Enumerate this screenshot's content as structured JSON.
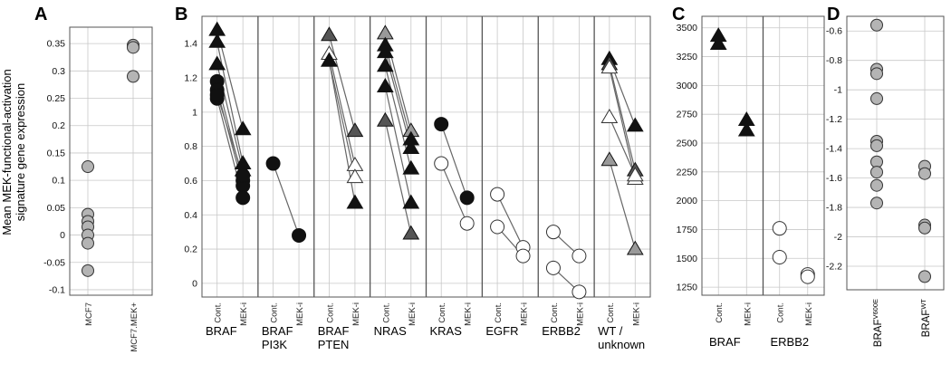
{
  "figure": {
    "ylabel_lines": [
      "Mean MEK-functional-activation",
      "signature gene expression"
    ],
    "panel_letters": [
      "A",
      "B",
      "C",
      "D"
    ]
  },
  "colors": {
    "black": "#111111",
    "dark_gray": "#555555",
    "mid_gray": "#999999",
    "light_gray": "#b4b4b4",
    "white": "#ffffff",
    "grid": "#c8c8c8",
    "line": "#666666"
  },
  "chart_data": [
    {
      "type": "scatter",
      "panel": "A",
      "categories": [
        "MCF7",
        "MCF7.MEK+"
      ],
      "ylim": [
        -0.11,
        0.38
      ],
      "yticks": [
        -0.1,
        -0.05,
        0,
        0.05,
        0.1,
        0.15,
        0.2,
        0.25,
        0.3,
        0.35
      ],
      "points": [
        {
          "cat": 0,
          "y": 0.125,
          "marker": "circle",
          "fill": "gray"
        },
        {
          "cat": 0,
          "y": 0.038,
          "marker": "circle",
          "fill": "gray"
        },
        {
          "cat": 0,
          "y": 0.025,
          "marker": "circle",
          "fill": "gray"
        },
        {
          "cat": 0,
          "y": 0.015,
          "marker": "circle",
          "fill": "gray"
        },
        {
          "cat": 0,
          "y": 0.0,
          "marker": "circle",
          "fill": "gray"
        },
        {
          "cat": 0,
          "y": -0.015,
          "marker": "circle",
          "fill": "gray"
        },
        {
          "cat": 0,
          "y": -0.065,
          "marker": "circle",
          "fill": "gray"
        },
        {
          "cat": 1,
          "y": 0.347,
          "marker": "circle",
          "fill": "gray"
        },
        {
          "cat": 1,
          "y": 0.343,
          "marker": "circle",
          "fill": "gray"
        },
        {
          "cat": 1,
          "y": 0.29,
          "marker": "circle",
          "fill": "gray"
        }
      ]
    },
    {
      "type": "line",
      "panel": "B",
      "ylim": [
        -0.08,
        1.56
      ],
      "yticks": [
        0,
        0.2,
        0.4,
        0.6,
        0.8,
        1,
        1.2,
        1.4
      ],
      "condition_labels": [
        "Cont.",
        "MEK-i"
      ],
      "groups": [
        {
          "label": [
            "BRAF"
          ],
          "pairs": [
            {
              "marker": "triangle",
              "fill": "black",
              "values": [
                1.48,
                0.9
              ]
            },
            {
              "marker": "triangle",
              "fill": "black",
              "values": [
                1.41,
                0.7
              ]
            },
            {
              "marker": "triangle",
              "fill": "black",
              "values": [
                1.28,
                0.66
              ]
            },
            {
              "marker": "circle",
              "fill": "black",
              "values": [
                1.18,
                0.6
              ]
            },
            {
              "marker": "circle",
              "fill": "black",
              "values": [
                1.13,
                0.57
              ]
            },
            {
              "marker": "circle",
              "fill": "black",
              "values": [
                1.08,
                0.5
              ]
            },
            {
              "marker": "circle",
              "fill": "black",
              "values": [
                1.1,
                0.63
              ]
            }
          ]
        },
        {
          "label": [
            "BRAF",
            "PI3K"
          ],
          "pairs": [
            {
              "marker": "circle",
              "fill": "black",
              "values": [
                0.7,
                0.28
              ]
            }
          ]
        },
        {
          "label": [
            "BRAF",
            "PTEN"
          ],
          "pairs": [
            {
              "marker": "triangle",
              "fill": "dark_gray",
              "values": [
                1.45,
                0.89
              ]
            },
            {
              "marker": "triangle",
              "fill": "white",
              "values": [
                1.34,
                0.69
              ]
            },
            {
              "marker": "triangle",
              "fill": "white",
              "values": [
                1.3,
                0.62
              ]
            },
            {
              "marker": "triangle",
              "fill": "black",
              "values": [
                1.3,
                0.47
              ]
            }
          ]
        },
        {
          "label": [
            "NRAS"
          ],
          "pairs": [
            {
              "marker": "triangle",
              "fill": "mid_gray",
              "values": [
                1.46,
                0.89
              ]
            },
            {
              "marker": "triangle",
              "fill": "black",
              "values": [
                1.39,
                0.84
              ]
            },
            {
              "marker": "triangle",
              "fill": "black",
              "values": [
                1.35,
                0.79
              ]
            },
            {
              "marker": "triangle",
              "fill": "black",
              "values": [
                1.27,
                0.67
              ]
            },
            {
              "marker": "triangle",
              "fill": "black",
              "values": [
                1.15,
                0.47
              ]
            },
            {
              "marker": "triangle",
              "fill": "dark_gray",
              "values": [
                0.95,
                0.29
              ]
            }
          ]
        },
        {
          "label": [
            "KRAS"
          ],
          "pairs": [
            {
              "marker": "circle",
              "fill": "black",
              "values": [
                0.93,
                0.5
              ]
            },
            {
              "marker": "circle",
              "fill": "white",
              "values": [
                0.7,
                0.35
              ]
            }
          ]
        },
        {
          "label": [
            "EGFR"
          ],
          "pairs": [
            {
              "marker": "circle",
              "fill": "white",
              "values": [
                0.52,
                0.21
              ]
            },
            {
              "marker": "circle",
              "fill": "white",
              "values": [
                0.33,
                0.16
              ]
            }
          ]
        },
        {
          "label": [
            "ERBB2"
          ],
          "pairs": [
            {
              "marker": "circle",
              "fill": "white",
              "values": [
                0.3,
                0.16
              ]
            },
            {
              "marker": "circle",
              "fill": "white",
              "values": [
                0.09,
                -0.05
              ]
            }
          ]
        },
        {
          "label": [
            "WT /",
            "unknown"
          ],
          "pairs": [
            {
              "marker": "triangle",
              "fill": "black",
              "values": [
                1.31,
                0.92
              ]
            },
            {
              "marker": "triangle",
              "fill": "dark_gray",
              "values": [
                1.28,
                0.66
              ]
            },
            {
              "marker": "triangle",
              "fill": "white",
              "values": [
                1.26,
                0.61
              ]
            },
            {
              "marker": "triangle",
              "fill": "white",
              "values": [
                0.97,
                0.63
              ]
            },
            {
              "marker": "triangle",
              "fill": "mid_gray",
              "values": [
                0.72,
                0.2
              ]
            }
          ]
        }
      ]
    },
    {
      "type": "line",
      "panel": "C",
      "ylim": [
        1180,
        3600
      ],
      "yticks": [
        1250,
        1500,
        1750,
        2000,
        2250,
        2500,
        2750,
        3000,
        3250,
        3500
      ],
      "condition_labels": [
        "Cont.",
        "MEK-i"
      ],
      "groups": [
        {
          "label": [
            "BRAF"
          ],
          "points": [
            {
              "cond": 0,
              "marker": "triangle",
              "fill": "black",
              "y": 3430
            },
            {
              "cond": 0,
              "marker": "triangle",
              "fill": "black",
              "y": 3360
            },
            {
              "cond": 1,
              "marker": "triangle",
              "fill": "black",
              "y": 2700
            },
            {
              "cond": 1,
              "marker": "triangle",
              "fill": "black",
              "y": 2610
            }
          ]
        },
        {
          "label": [
            "ERBB2"
          ],
          "points": [
            {
              "cond": 0,
              "marker": "circle",
              "fill": "white",
              "y": 1760
            },
            {
              "cond": 0,
              "marker": "circle",
              "fill": "white",
              "y": 1510
            },
            {
              "cond": 1,
              "marker": "circle",
              "fill": "white",
              "y": 1360
            },
            {
              "cond": 1,
              "marker": "circle",
              "fill": "white",
              "y": 1340
            }
          ]
        }
      ]
    },
    {
      "type": "scatter",
      "panel": "D",
      "categories": [
        {
          "base": "BRAF",
          "sup": "V600E"
        },
        {
          "base": "BRAF",
          "sup": "WT"
        }
      ],
      "ylim": [
        -2.36,
        -0.5
      ],
      "yticks": [
        -0.6,
        -0.8,
        -1,
        -1.2,
        -1.4,
        -1.6,
        -1.8,
        -2,
        -2.2
      ],
      "points": [
        {
          "cat": 0,
          "y": -0.56,
          "marker": "circle",
          "fill": "gray"
        },
        {
          "cat": 0,
          "y": -0.86,
          "marker": "circle",
          "fill": "gray"
        },
        {
          "cat": 0,
          "y": -0.89,
          "marker": "circle",
          "fill": "gray"
        },
        {
          "cat": 0,
          "y": -1.06,
          "marker": "circle",
          "fill": "gray"
        },
        {
          "cat": 0,
          "y": -1.35,
          "marker": "circle",
          "fill": "gray"
        },
        {
          "cat": 0,
          "y": -1.38,
          "marker": "circle",
          "fill": "gray"
        },
        {
          "cat": 0,
          "y": -1.49,
          "marker": "circle",
          "fill": "gray"
        },
        {
          "cat": 0,
          "y": -1.56,
          "marker": "circle",
          "fill": "gray"
        },
        {
          "cat": 0,
          "y": -1.65,
          "marker": "circle",
          "fill": "gray"
        },
        {
          "cat": 0,
          "y": -1.77,
          "marker": "circle",
          "fill": "gray"
        },
        {
          "cat": 1,
          "y": -1.52,
          "marker": "circle",
          "fill": "gray"
        },
        {
          "cat": 1,
          "y": -1.57,
          "marker": "circle",
          "fill": "gray"
        },
        {
          "cat": 1,
          "y": -1.92,
          "marker": "circle",
          "fill": "gray"
        },
        {
          "cat": 1,
          "y": -1.94,
          "marker": "circle",
          "fill": "gray"
        },
        {
          "cat": 1,
          "y": -2.27,
          "marker": "circle",
          "fill": "gray"
        }
      ]
    }
  ]
}
